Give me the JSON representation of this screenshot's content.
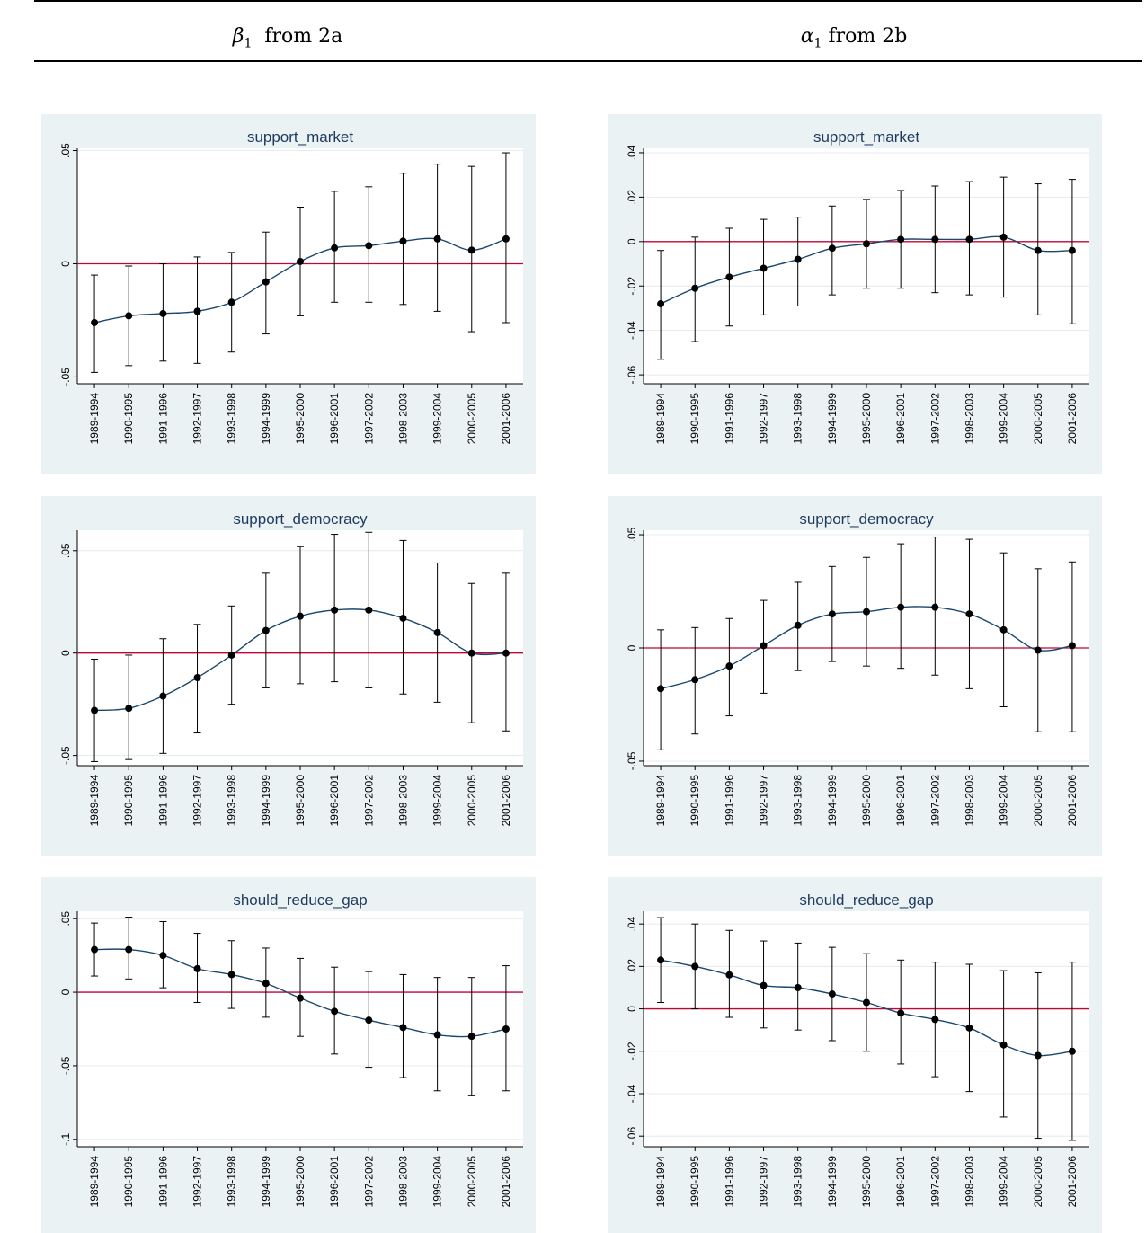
{
  "header": {
    "left": {
      "symbol": "β",
      "subscript": "1",
      "label": "from 2a"
    },
    "right": {
      "symbol": "α",
      "subscript": "1",
      "label": "from 2b"
    }
  },
  "colors": {
    "panel_bg": "#eaf2f3",
    "plot_bg": "#ffffff",
    "line": "#1a476f",
    "zero_line": "#c10534",
    "title": "#1e3a5f",
    "errbar": "#000000",
    "point": "#000000"
  },
  "categories": [
    "1989-1994",
    "1990-1995",
    "1991-1996",
    "1992-1997",
    "1993-1998",
    "1994-1999",
    "1995-2000",
    "1996-2001",
    "1997-2002",
    "1998-2003",
    "1999-2004",
    "2000-2005",
    "2001-2006"
  ],
  "chart_data": [
    {
      "type": "line",
      "title": "support_market",
      "column": "left",
      "categories": [
        "1989-1994",
        "1990-1995",
        "1991-1996",
        "1992-1997",
        "1993-1998",
        "1994-1999",
        "1995-2000",
        "1996-2001",
        "1997-2002",
        "1998-2003",
        "1999-2004",
        "2000-2005",
        "2001-2006"
      ],
      "ylim": [
        -0.053,
        0.051
      ],
      "yticks": [
        -0.05,
        0,
        0.05
      ],
      "ytick_labels": [
        "-.05",
        "0",
        ".05"
      ],
      "values": [
        -0.026,
        -0.023,
        -0.022,
        -0.021,
        -0.017,
        -0.008,
        0.001,
        0.007,
        0.008,
        0.01,
        0.011,
        0.006,
        0.011
      ],
      "lower": [
        -0.048,
        -0.045,
        -0.043,
        -0.044,
        -0.039,
        -0.031,
        -0.023,
        -0.017,
        -0.017,
        -0.018,
        -0.021,
        -0.03,
        -0.026
      ],
      "upper": [
        -0.005,
        -0.001,
        0.0,
        0.003,
        0.005,
        0.014,
        0.025,
        0.032,
        0.034,
        0.04,
        0.044,
        0.043,
        0.049
      ]
    },
    {
      "type": "line",
      "title": "support_market",
      "column": "right",
      "categories": [
        "1989-1994",
        "1990-1995",
        "1991-1996",
        "1992-1997",
        "1993-1998",
        "1994-1999",
        "1995-2000",
        "1996-2001",
        "1997-2002",
        "1998-2003",
        "1999-2004",
        "2000-2005",
        "2001-2006"
      ],
      "ylim": [
        -0.064,
        0.042
      ],
      "yticks": [
        -0.06,
        -0.04,
        -0.02,
        0,
        0.02,
        0.04
      ],
      "ytick_labels": [
        "-.06",
        "-.04",
        "-.02",
        "0",
        ".02",
        ".04"
      ],
      "values": [
        -0.028,
        -0.021,
        -0.016,
        -0.012,
        -0.008,
        -0.003,
        -0.001,
        0.001,
        0.001,
        0.001,
        0.002,
        -0.004,
        -0.004
      ],
      "lower": [
        -0.053,
        -0.045,
        -0.038,
        -0.033,
        -0.029,
        -0.024,
        -0.021,
        -0.021,
        -0.023,
        -0.024,
        -0.025,
        -0.033,
        -0.037
      ],
      "upper": [
        -0.004,
        0.002,
        0.006,
        0.01,
        0.011,
        0.016,
        0.019,
        0.023,
        0.025,
        0.027,
        0.029,
        0.026,
        0.028
      ]
    },
    {
      "type": "line",
      "title": "support_democracy",
      "column": "left",
      "categories": [
        "1989-1994",
        "1990-1995",
        "1991-1996",
        "1992-1997",
        "1993-1998",
        "1994-1999",
        "1995-2000",
        "1996-2001",
        "1997-2002",
        "1998-2003",
        "1999-2004",
        "2000-2005",
        "2001-2006"
      ],
      "ylim": [
        -0.055,
        0.06
      ],
      "yticks": [
        -0.05,
        0,
        0.05
      ],
      "ytick_labels": [
        "-.05",
        "0",
        ".05"
      ],
      "values": [
        -0.028,
        -0.027,
        -0.021,
        -0.012,
        -0.001,
        0.011,
        0.018,
        0.021,
        0.021,
        0.017,
        0.01,
        0.0,
        0.0
      ],
      "lower": [
        -0.053,
        -0.052,
        -0.049,
        -0.039,
        -0.025,
        -0.017,
        -0.015,
        -0.014,
        -0.017,
        -0.02,
        -0.024,
        -0.034,
        -0.038
      ],
      "upper": [
        -0.003,
        -0.001,
        0.007,
        0.014,
        0.023,
        0.039,
        0.052,
        0.058,
        0.059,
        0.055,
        0.044,
        0.034,
        0.039
      ]
    },
    {
      "type": "line",
      "title": "support_democracy",
      "column": "right",
      "categories": [
        "1989-1994",
        "1990-1995",
        "1991-1996",
        "1992-1997",
        "1993-1998",
        "1994-1999",
        "1995-2000",
        "1996-2001",
        "1997-2002",
        "1998-2003",
        "1999-2004",
        "2000-2005",
        "2001-2006"
      ],
      "ylim": [
        -0.052,
        0.052
      ],
      "yticks": [
        -0.05,
        0,
        0.05
      ],
      "ytick_labels": [
        "-.05",
        "0",
        ".05"
      ],
      "values": [
        -0.018,
        -0.014,
        -0.008,
        0.001,
        0.01,
        0.015,
        0.016,
        0.018,
        0.018,
        0.015,
        0.008,
        -0.001,
        0.001
      ],
      "lower": [
        -0.045,
        -0.038,
        -0.03,
        -0.02,
        -0.01,
        -0.006,
        -0.008,
        -0.009,
        -0.012,
        -0.018,
        -0.026,
        -0.037,
        -0.037
      ],
      "upper": [
        0.008,
        0.009,
        0.013,
        0.021,
        0.029,
        0.036,
        0.04,
        0.046,
        0.049,
        0.048,
        0.042,
        0.035,
        0.038
      ]
    },
    {
      "type": "line",
      "title": "should_reduce_gap",
      "column": "left",
      "categories": [
        "1989-1994",
        "1990-1995",
        "1991-1996",
        "1992-1997",
        "1993-1998",
        "1994-1999",
        "1995-2000",
        "1996-2001",
        "1997-2002",
        "1998-2003",
        "1999-2004",
        "2000-2005",
        "2001-2006"
      ],
      "ylim": [
        -0.105,
        0.055
      ],
      "yticks": [
        -0.1,
        -0.05,
        0,
        0.05
      ],
      "ytick_labels": [
        "-.1",
        "-.05",
        "0",
        ".05"
      ],
      "values": [
        0.029,
        0.029,
        0.025,
        0.016,
        0.012,
        0.006,
        -0.004,
        -0.013,
        -0.019,
        -0.024,
        -0.029,
        -0.03,
        -0.025
      ],
      "lower": [
        0.011,
        0.009,
        0.003,
        -0.007,
        -0.011,
        -0.017,
        -0.03,
        -0.042,
        -0.051,
        -0.058,
        -0.067,
        -0.07,
        -0.067
      ],
      "upper": [
        0.047,
        0.051,
        0.048,
        0.04,
        0.035,
        0.03,
        0.023,
        0.017,
        0.014,
        0.012,
        0.01,
        0.01,
        0.018
      ]
    },
    {
      "type": "line",
      "title": "should_reduce_gap",
      "column": "right",
      "categories": [
        "1989-1994",
        "1990-1995",
        "1991-1996",
        "1992-1997",
        "1993-1998",
        "1994-1999",
        "1995-2000",
        "1996-2001",
        "1997-2002",
        "1998-2003",
        "1999-2004",
        "2000-2005",
        "2001-2006"
      ],
      "ylim": [
        -0.065,
        0.046
      ],
      "yticks": [
        -0.06,
        -0.04,
        -0.02,
        0,
        0.02,
        0.04
      ],
      "ytick_labels": [
        "-.06",
        "-.04",
        "-.02",
        "0",
        ".02",
        ".04"
      ],
      "values": [
        0.023,
        0.02,
        0.016,
        0.011,
        0.01,
        0.007,
        0.003,
        -0.002,
        -0.005,
        -0.009,
        -0.017,
        -0.022,
        -0.02
      ],
      "lower": [
        0.003,
        0.0,
        -0.004,
        -0.009,
        -0.01,
        -0.015,
        -0.02,
        -0.026,
        -0.032,
        -0.039,
        -0.051,
        -0.061,
        -0.062
      ],
      "upper": [
        0.043,
        0.04,
        0.037,
        0.032,
        0.031,
        0.029,
        0.026,
        0.023,
        0.022,
        0.021,
        0.018,
        0.017,
        0.022
      ]
    }
  ]
}
